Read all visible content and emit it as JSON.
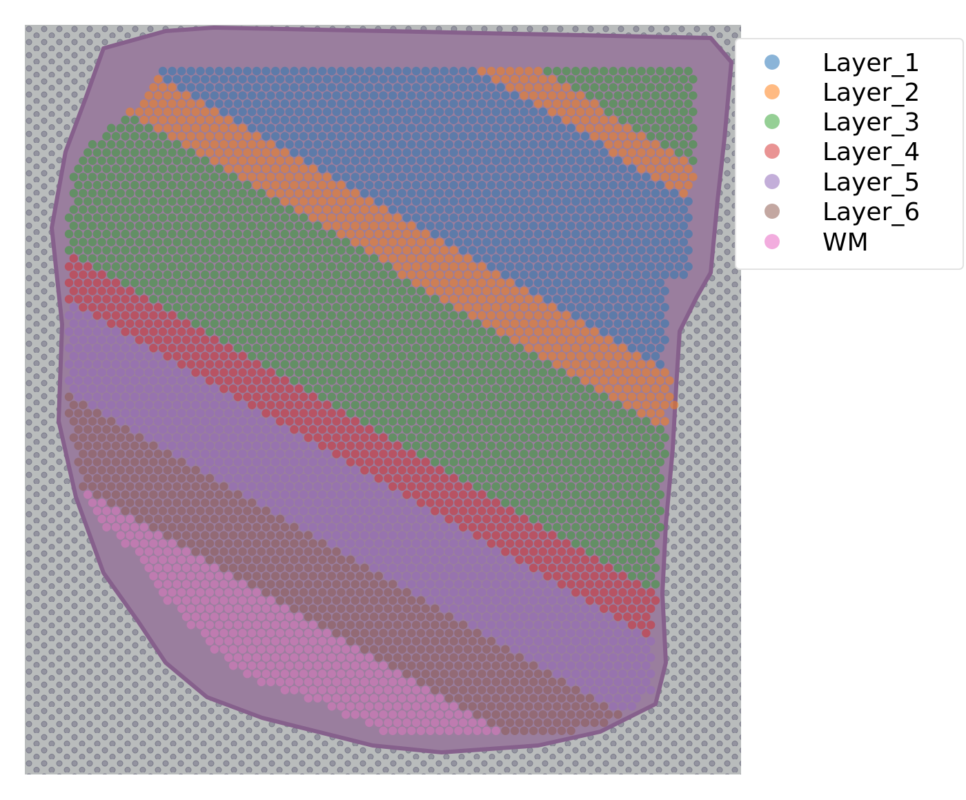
{
  "chart_data": {
    "type": "scatter",
    "subtype": "spatial-transcriptomics-spot-plot",
    "title": "",
    "xlabel": "",
    "ylabel": "",
    "grid": false,
    "axes_visible": false,
    "legend_position": "right-outside-top",
    "background": "H&E tissue section image",
    "categories": [
      "Layer_1",
      "Layer_2",
      "Layer_3",
      "Layer_4",
      "Layer_5",
      "Layer_6",
      "WM"
    ],
    "colors": {
      "Layer_1": "#1f77b4",
      "Layer_2": "#ff7f0e",
      "Layer_3": "#2ca02c",
      "Layer_4": "#d62728",
      "Layer_5": "#9467bd",
      "Layer_6": "#8c564b",
      "WM": "#e377c2"
    },
    "legend_entries": [
      {
        "label": "Layer_1",
        "color": "#8ab4d8"
      },
      {
        "label": "Layer_2",
        "color": "#ffba82"
      },
      {
        "label": "Layer_3",
        "color": "#95cf95"
      },
      {
        "label": "Layer_4",
        "color": "#e99393"
      },
      {
        "label": "Layer_5",
        "color": "#c3aed9"
      },
      {
        "label": "Layer_6",
        "color": "#c3a7a1"
      },
      {
        "label": "WM",
        "color": "#f2acde"
      }
    ]
  }
}
